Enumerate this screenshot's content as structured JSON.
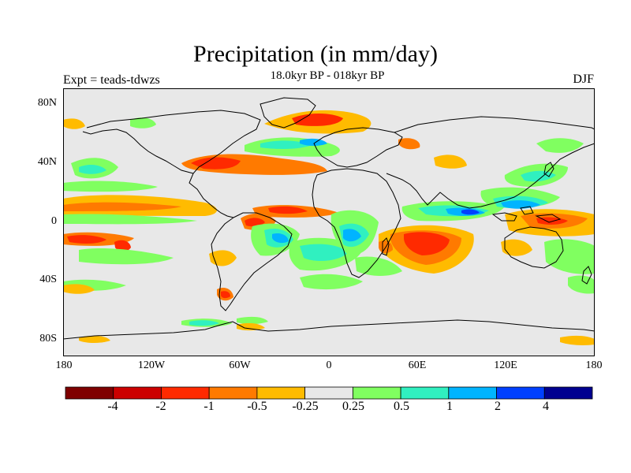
{
  "title": "Precipitation (in mm/day)",
  "subtitle": "18.0kyr BP - 018kyr BP",
  "experiment": "Expt = teads-tdwzs",
  "season": "DJF",
  "map": {
    "background_color": "#e8e8e8",
    "lat_ticks": [
      "80N",
      "40N",
      "0",
      "40S",
      "80S"
    ],
    "lon_ticks": [
      "180",
      "120W",
      "60W",
      "0",
      "60E",
      "120E",
      "180"
    ]
  },
  "colorbar": {
    "colors": [
      "#7f0000",
      "#cc0000",
      "#ff2a00",
      "#ff7a00",
      "#ffbb00",
      "#e8e8e8",
      "#80ff60",
      "#30f0c0",
      "#00b4ff",
      "#0040ff",
      "#000090"
    ],
    "labels": [
      "-4",
      "-2",
      "-1",
      "-0.5",
      "-0.25",
      "0.25",
      "0.5",
      "1",
      "2",
      "4"
    ]
  }
}
